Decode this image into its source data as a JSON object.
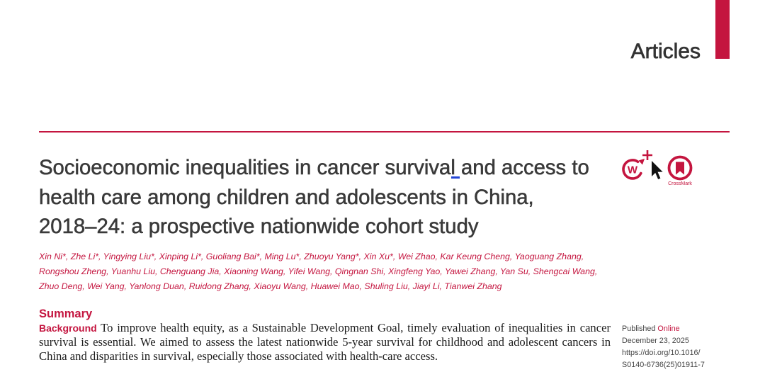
{
  "header": {
    "section_label": "Articles"
  },
  "article": {
    "title_lines": [
      "Socioeconomic inequalities in cancer survival and access to",
      "health care among children and adolescents in China,",
      "2018–24: a prospective nationwide cohort study"
    ],
    "author_lines": [
      "Xin Ni*, Zhe Li*, Yingying Liu*, Xinping Li*, Guoliang Bai*, Ming Lu*, Zhuoyu Yang*, Xin Xu*, Wei Zhao, Kar Keung Cheng, Yaoguang Zhang,",
      "Rongshou Zheng, Yuanhu Liu, Chenguang Jia, Xiaoning Wang, Yifei Wang, Qingnan Shi, Xingfeng Yao, Yawei Zhang, Yan Su, Shengcai Wang,",
      "Zhuo Deng, Wei Yang, Yanlong Duan, Ruidong Zhang, Xiaoyu Wang, Huawei Mao, Shuling Liu, Jiayi Li, Tianwei Zhang"
    ],
    "icons": {
      "web_extra": {
        "name": "web-extra-icon",
        "letter": "W"
      },
      "selected": {
        "name": "cursor-plus-icon"
      },
      "crossmark": {
        "name": "crossmark-icon",
        "label": "CrossMark"
      }
    }
  },
  "summary": {
    "heading": "Summary",
    "background": {
      "label": "Background",
      "lines": [
        "To improve health equity, as a Sustainable Development Goal, timely evaluation of inequalities in cancer",
        "survival is essential. We aimed to assess the latest nationwide 5-year survival for childhood and adolescent cancers in",
        "China and disparities in survival, especially those associated with health-care access."
      ]
    }
  },
  "publication": {
    "published_label": "Published",
    "online_label": "Online",
    "date": "December 23, 2025",
    "doi_lines": [
      "https://doi.org/10.1016/",
      "S0140-6736(25)01911-7"
    ]
  },
  "colors": {
    "accent": "#c4153f",
    "title_text": "#3a3a3a",
    "body_text": "#1c1c1c",
    "meta_text": "#444444",
    "text_cursor": "#2446d6"
  }
}
